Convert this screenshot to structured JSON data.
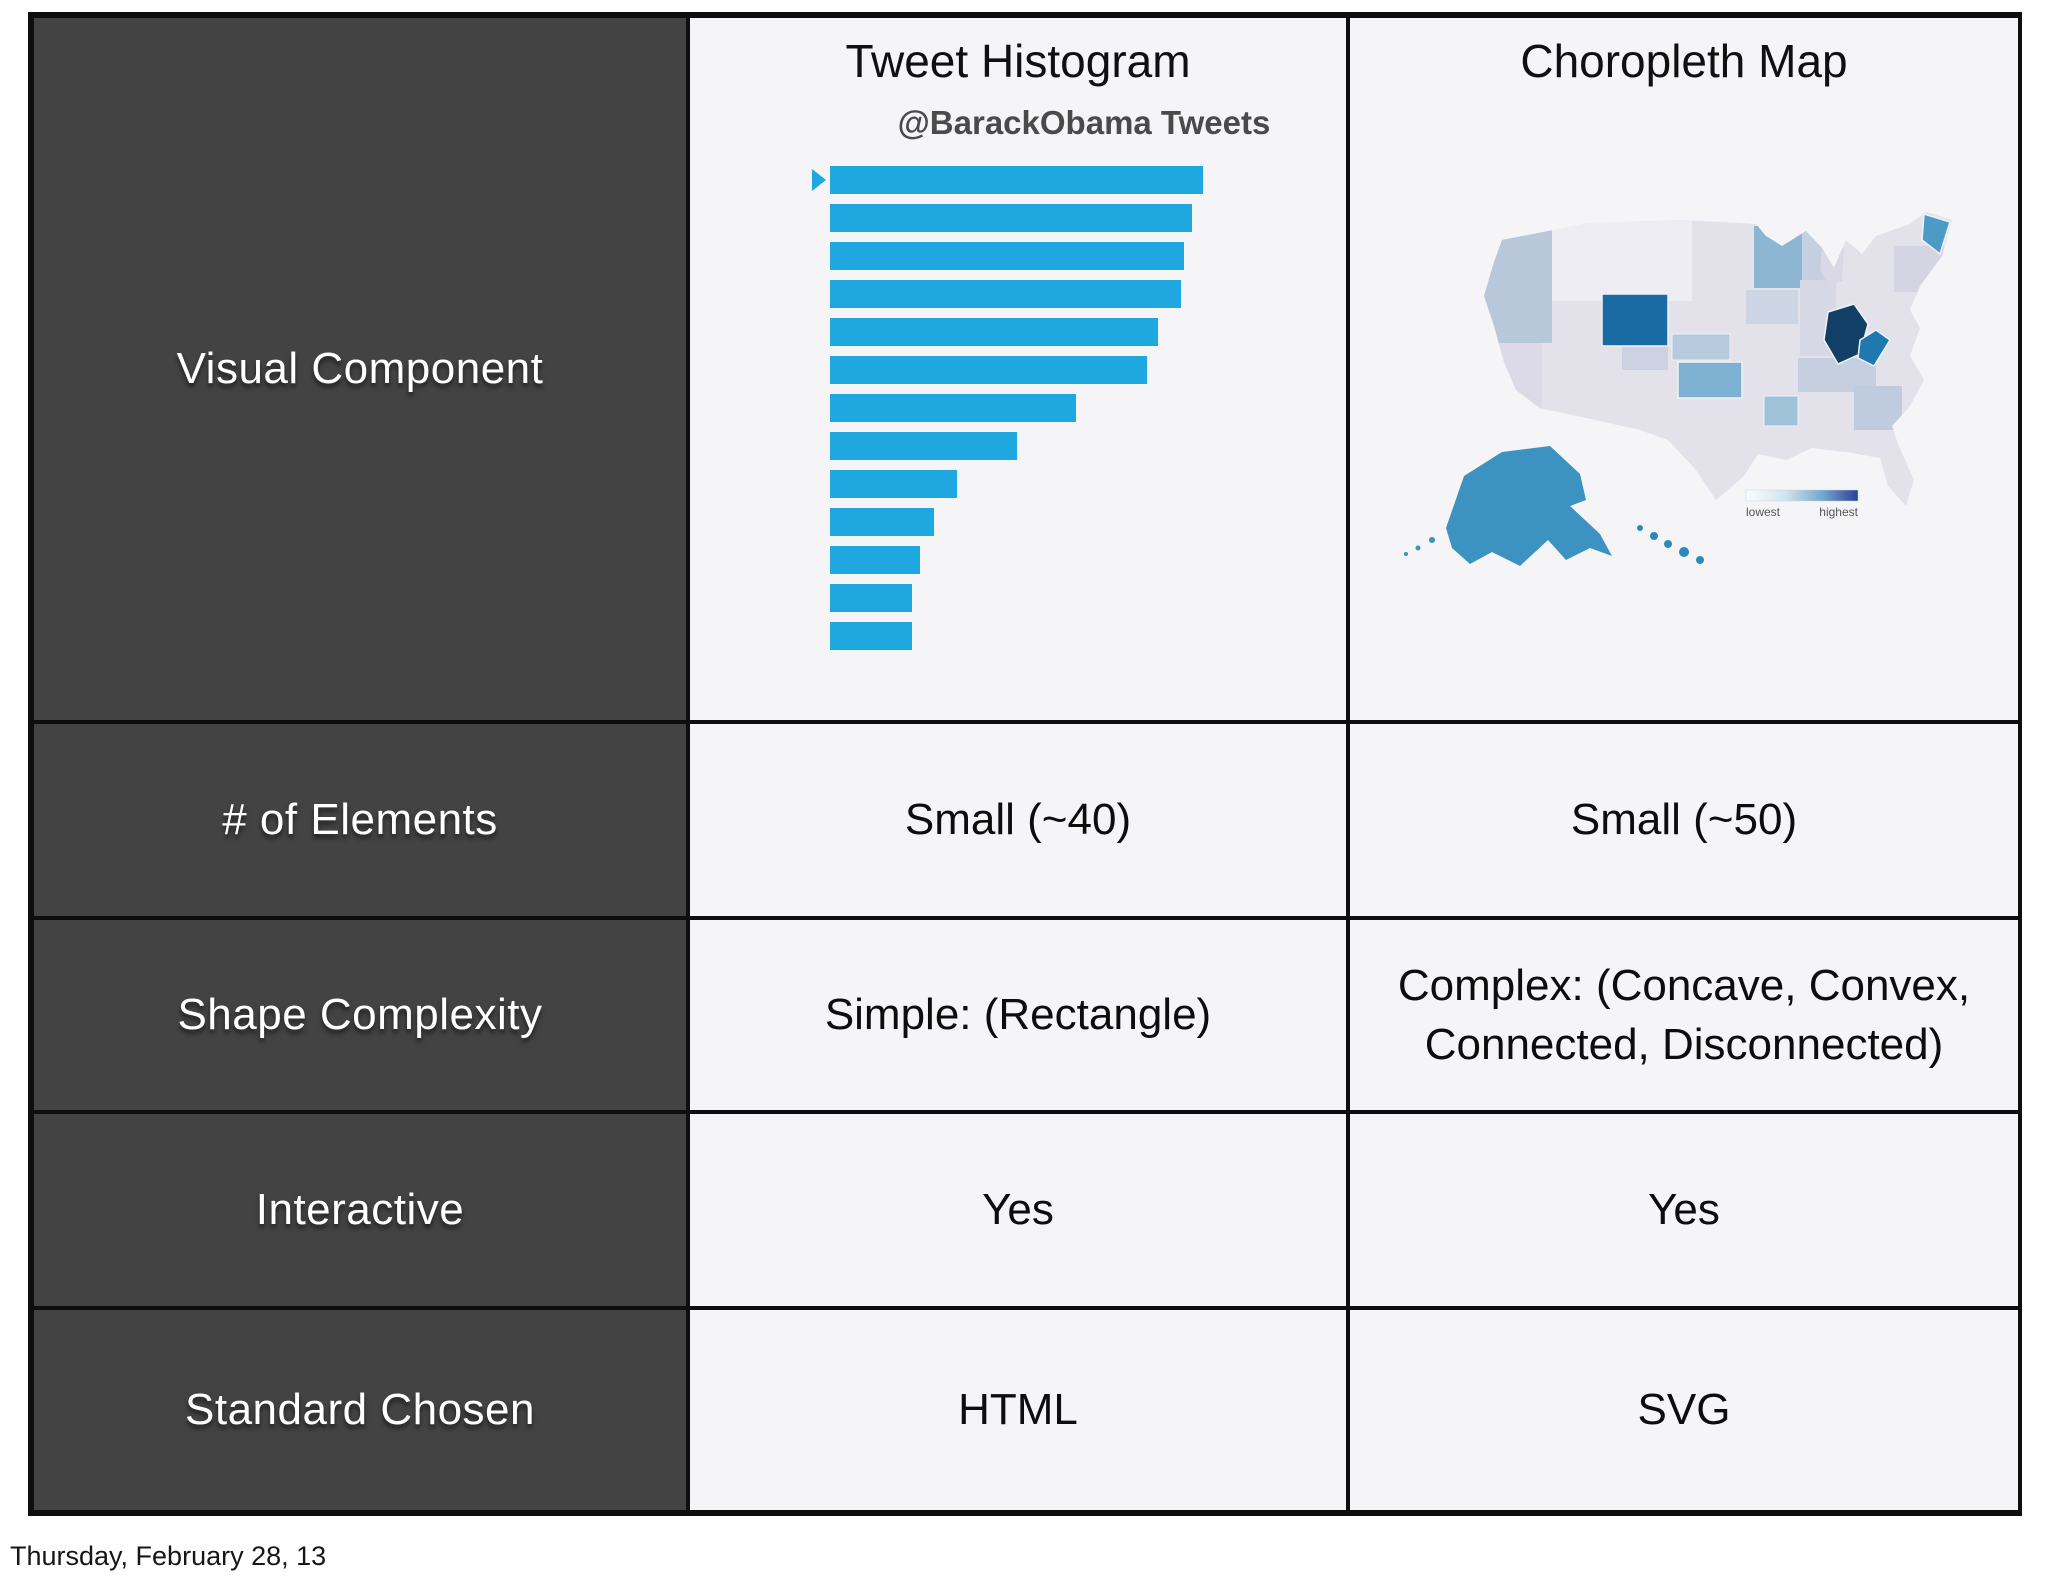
{
  "slide": {
    "footer": "Thursday, February 28, 13"
  },
  "table": {
    "row_labels": [
      "Visual Component",
      "# of Elements",
      "Shape Complexity",
      "Interactive",
      "Standard Chosen"
    ],
    "columns": [
      {
        "header": "Tweet Histogram",
        "cells": [
          "Small (~40)",
          "Simple: (Rectangle)",
          "Yes",
          "HTML"
        ]
      },
      {
        "header": "Choropleth Map",
        "cells": [
          "Small (~50)",
          "Complex: (Concave, Convex, Connected, Disconnected)",
          "Yes",
          "SVG"
        ]
      }
    ]
  },
  "chart_data": [
    {
      "type": "bar",
      "orientation": "horizontal",
      "title": "@BarackObama Tweets",
      "values": [
        100,
        97,
        95,
        94,
        88,
        85,
        66,
        50,
        34,
        28,
        24,
        22,
        22
      ],
      "value_unit": "relative-width-percent (no axis labels shown)",
      "bar_color": "#1fa8e0",
      "selected_index": 0,
      "legend_position": "none",
      "grid": false
    },
    {
      "type": "heatmap",
      "subtype": "choropleth-us-states",
      "title": "Choropleth Map",
      "legend": {
        "min_label": "lowest",
        "max_label": "highest",
        "position": "bottom-right-of-map"
      },
      "notable_states": [
        {
          "state": "Ohio",
          "level": "highest"
        },
        {
          "state": "Wyoming",
          "level": "very high"
        },
        {
          "state": "West Virginia",
          "level": "high"
        },
        {
          "state": "Alaska",
          "level": "high"
        },
        {
          "state": "Maine",
          "level": "high"
        },
        {
          "state": "Hawaii",
          "level": "high"
        },
        {
          "state": "Kansas",
          "level": "medium"
        },
        {
          "state": "Minnesota",
          "level": "medium"
        },
        {
          "state": "Arkansas",
          "level": "medium-low"
        },
        {
          "state": "Nebraska",
          "level": "low"
        },
        {
          "state": "most other states",
          "level": "lowest (pale lavender)"
        }
      ]
    }
  ],
  "colors": {
    "accent_bar_blue": "#1fa8e0",
    "dark_cell_bg": "#434343",
    "light_cell_bg": "#f5f4f6",
    "grid_border": "#0e0e0e",
    "map_base_state": "#e3e1ea",
    "map_highest": "#123f66",
    "map_very_high": "#1a6ba4",
    "map_high": "#1d79b0",
    "map_medium": "#7fb2d2",
    "legend_gradient_end": "#2c3f93"
  }
}
